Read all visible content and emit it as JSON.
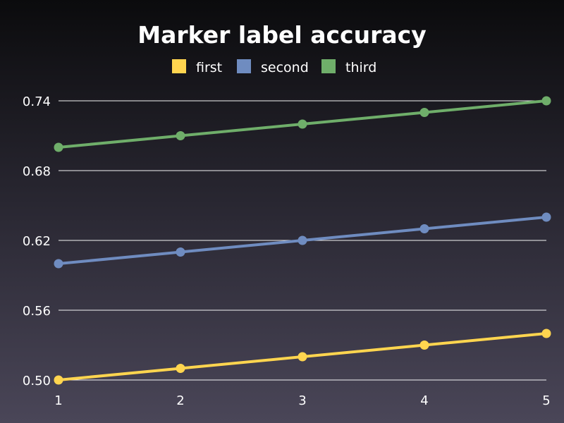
{
  "chart_data": {
    "type": "line",
    "title": "Marker label accuracy",
    "xlabel": "",
    "ylabel": "",
    "x": [
      1,
      2,
      3,
      4,
      5
    ],
    "xlim": [
      1,
      5
    ],
    "ylim": [
      0.5,
      0.74
    ],
    "y_ticks": [
      "0.50",
      "0.56",
      "0.62",
      "0.68",
      "0.74"
    ],
    "x_ticks": [
      "1",
      "2",
      "3",
      "4",
      "5"
    ],
    "grid": "horizontal",
    "legend_position": "top-center",
    "series": [
      {
        "name": "first",
        "color": "#FFD54F",
        "values": [
          0.5,
          0.51,
          0.52,
          0.53,
          0.54
        ]
      },
      {
        "name": "second",
        "color": "#6F8CC0",
        "values": [
          0.6,
          0.61,
          0.62,
          0.63,
          0.64
        ]
      },
      {
        "name": "third",
        "color": "#6FAE6A",
        "values": [
          0.7,
          0.71,
          0.72,
          0.73,
          0.74
        ]
      }
    ]
  }
}
